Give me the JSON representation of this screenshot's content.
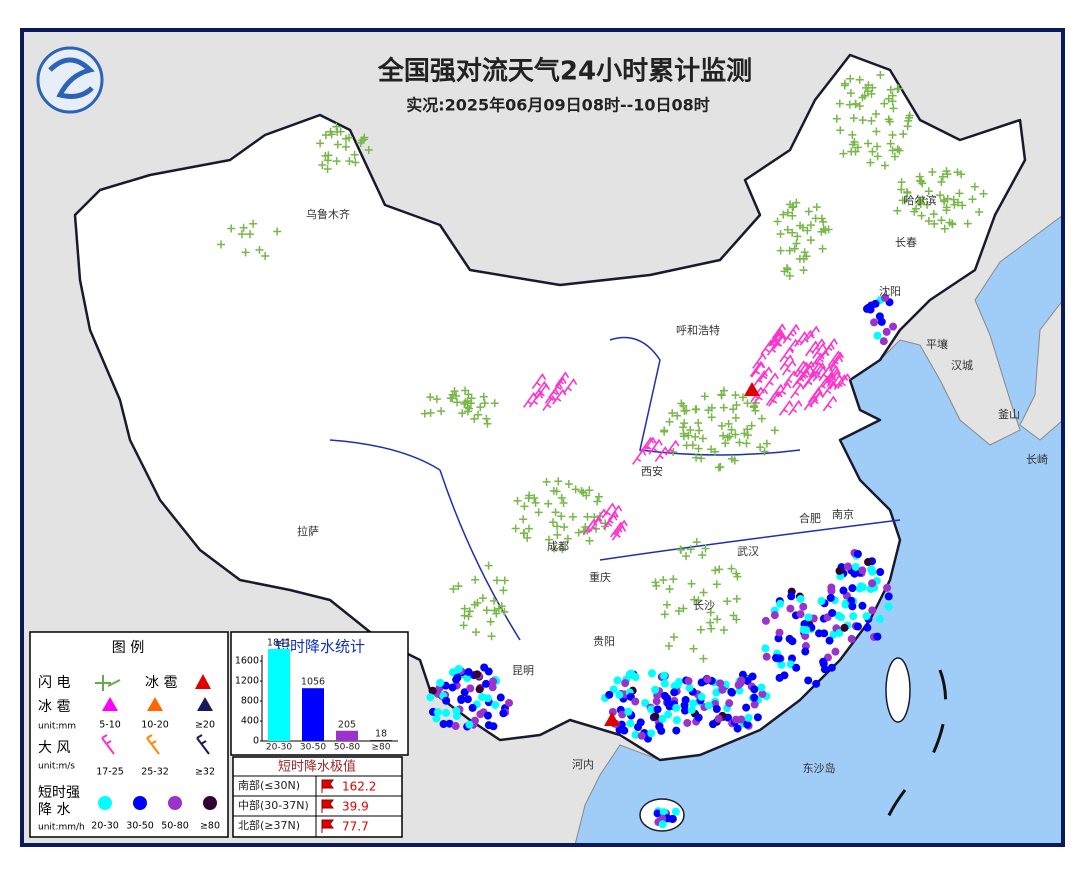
{
  "header": {
    "title": "全国强对流天气24小时累计监测",
    "subtitle": "实况:2025年06月09日08时--10日08时"
  },
  "map": {
    "cities": [
      "乌鲁木齐",
      "哈尔滨",
      "长春",
      "沈阳",
      "呼和浩特",
      "平壤",
      "汉城",
      "釜山",
      "长崎",
      "西安",
      "合肥",
      "南京",
      "武汉",
      "成都",
      "重庆",
      "长沙",
      "贵阳",
      "昆明",
      "拉萨",
      "河内",
      "东沙岛"
    ]
  },
  "legend": {
    "title": "图 例",
    "lightning": "闪 电",
    "hail_observed": "冰 雹",
    "hail": {
      "label": "冰 雹",
      "unit": "unit:mm",
      "classes": [
        "5-10",
        "10-20",
        "≥20"
      ],
      "colors": [
        "#ff00ff",
        "#ff6600",
        "#1a1a5a"
      ]
    },
    "wind": {
      "label": "大 风",
      "unit": "unit:m/s",
      "classes": [
        "17-25",
        "25-32",
        "≥32"
      ],
      "colors": [
        "#ff33cc",
        "#ff8800",
        "#1a1a5a"
      ]
    },
    "rain": {
      "label_lines": [
        "短时强",
        "降 水"
      ],
      "unit": "unit:mm/h",
      "classes": [
        "20-30",
        "30-50",
        "50-80",
        "≥80"
      ],
      "colors": [
        "#00ffff",
        "#0000ff",
        "#9933cc",
        "#330033"
      ]
    }
  },
  "chart_data": {
    "type": "bar",
    "title": "短时降水统计",
    "categories": [
      "20-30",
      "30-50",
      "50-80",
      "≥80"
    ],
    "values": [
      1841,
      1056,
      205,
      18
    ],
    "colors": [
      "#00ffff",
      "#0000ff",
      "#9933cc",
      "#330033"
    ],
    "ylim": [
      0,
      1900
    ],
    "yticks": [
      0,
      400,
      800,
      1200,
      1600
    ]
  },
  "extremes": {
    "title": "短时降水极值",
    "rows": [
      {
        "region": "南部(≤30N)",
        "value": 162.2
      },
      {
        "region": "中部(30-37N)",
        "value": 39.9
      },
      {
        "region": "北部(≥37N)",
        "value": 77.7
      }
    ]
  }
}
